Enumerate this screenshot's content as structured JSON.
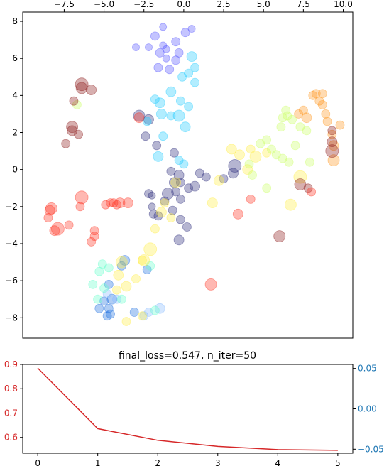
{
  "chart_data": [
    {
      "type": "scatter",
      "title": "",
      "xlabel": "",
      "ylabel": "",
      "xlim": [
        -10.1,
        10.6
      ],
      "ylim": [
        -9.1,
        8.5
      ],
      "x_ticks": [
        -7.5,
        -5.0,
        -2.5,
        0.0,
        2.5,
        5.0,
        7.5,
        10.0
      ],
      "x_tick_labels": [
        "−7.5",
        "−5.0",
        "−2.5",
        "0.0",
        "2.5",
        "5.0",
        "7.5",
        "10.0"
      ],
      "x_ticks_position": "top",
      "y_ticks": [
        -8,
        -6,
        -4,
        -2,
        0,
        2,
        4,
        6,
        8
      ],
      "y_tick_labels": [
        "−8",
        "−6",
        "−4",
        "−2",
        "0",
        "2",
        "4",
        "6",
        "8"
      ],
      "grid": false,
      "legend": "none",
      "alpha": 0.35,
      "clusters": [
        {
          "color": "#2a2a7a",
          "points": [
            [
              -0.2,
              -0.7,
              6
            ],
            [
              -0.5,
              -1.2,
              6
            ],
            [
              0.3,
              -1.0,
              6
            ],
            [
              -2.0,
              -1.4,
              5
            ],
            [
              -1.2,
              -1.7,
              6
            ],
            [
              -0.3,
              -0.3,
              7
            ],
            [
              -1.0,
              -1.3,
              8
            ],
            [
              -2.0,
              -2.0,
              5
            ],
            [
              -0.7,
              -2.2,
              6
            ],
            [
              -0.3,
              -3.8,
              7
            ],
            [
              0.2,
              -3.1,
              6
            ],
            [
              -2.2,
              -1.3,
              6
            ],
            [
              -1.6,
              -2.5,
              6
            ],
            [
              -0.2,
              -1.6,
              6
            ],
            [
              0.7,
              -0.9,
              7
            ],
            [
              1.0,
              -0.2,
              6
            ],
            [
              2.5,
              -0.5,
              6
            ],
            [
              3.1,
              -0.2,
              7
            ],
            [
              3.2,
              0.2,
              9
            ],
            [
              -0.8,
              -0.1,
              6
            ],
            [
              -1.7,
              1.3,
              6
            ],
            [
              -0.6,
              0.9,
              6
            ],
            [
              -2.2,
              2.7,
              7
            ],
            [
              -2.4,
              1.8,
              6
            ],
            [
              -2.8,
              2.9,
              8
            ],
            [
              -0.2,
              -2.7,
              6
            ],
            [
              -0.6,
              -0.7,
              7
            ],
            [
              -1.9,
              -2.4,
              6
            ],
            [
              1.4,
              -0.4,
              6
            ]
          ]
        },
        {
          "color": "#5555ff",
          "points": [
            [
              -1.3,
              7.7,
              5
            ],
            [
              -1.8,
              7.2,
              6
            ],
            [
              0.5,
              7.6,
              5
            ],
            [
              -1.3,
              6.7,
              5
            ],
            [
              -2.2,
              6.6,
              5
            ],
            [
              -1.1,
              6.5,
              5
            ],
            [
              -0.5,
              6.9,
              6
            ],
            [
              0.1,
              7.4,
              6
            ],
            [
              -1.5,
              6.3,
              6
            ],
            [
              -1.6,
              5.5,
              6
            ],
            [
              -0.5,
              5.9,
              6
            ],
            [
              -0.9,
              5.4,
              6
            ],
            [
              -3.0,
              6.6,
              5
            ],
            [
              -1.1,
              6.0,
              5
            ],
            [
              -0.3,
              6.3,
              6
            ]
          ]
        },
        {
          "color": "#22ccff",
          "points": [
            [
              0.5,
              6.1,
              7
            ],
            [
              0.7,
              5.5,
              6
            ],
            [
              0.3,
              5.2,
              6
            ],
            [
              -0.1,
              5.0,
              6
            ],
            [
              0.7,
              4.7,
              6
            ],
            [
              -1.8,
              3.8,
              6
            ],
            [
              -1.5,
              3.6,
              7
            ],
            [
              -0.8,
              4.2,
              7
            ],
            [
              -0.2,
              3.7,
              6
            ],
            [
              0.3,
              3.4,
              6
            ],
            [
              -0.8,
              2.9,
              6
            ],
            [
              -0.3,
              2.9,
              8
            ],
            [
              -1.4,
              3.0,
              7
            ],
            [
              0.1,
              2.3,
              7
            ],
            [
              -1.3,
              1.8,
              6
            ],
            [
              -1.6,
              0.7,
              7
            ],
            [
              -2.3,
              2.6,
              6
            ],
            [
              0.0,
              0.3,
              6
            ],
            [
              -0.3,
              0.5,
              6
            ]
          ]
        },
        {
          "color": "#1e6fe0",
          "points": [
            [
              -4.5,
              -7.0,
              7
            ],
            [
              -4.7,
              -7.5,
              6
            ],
            [
              -4.6,
              -7.8,
              6
            ],
            [
              -4.8,
              -7.9,
              6
            ],
            [
              -3.1,
              -7.7,
              6
            ],
            [
              -4.7,
              -6.2,
              6
            ],
            [
              -5.3,
              -7.5,
              6
            ],
            [
              -5.0,
              -7.1,
              6
            ],
            [
              -3.9,
              -5.2,
              6
            ],
            [
              -2.3,
              -5.4,
              6
            ],
            [
              -3.7,
              -4.9,
              7
            ]
          ]
        },
        {
          "color": "#88bbff",
          "points": [
            [
              -2.5,
              -7.9,
              6
            ],
            [
              -2.2,
              -7.7,
              6
            ],
            [
              -1.5,
              -7.5,
              7
            ],
            [
              -4.2,
              -7.0,
              6
            ],
            [
              -4.8,
              -6.7,
              6
            ]
          ]
        },
        {
          "color": "#66ffcc",
          "points": [
            [
              -5.3,
              -5.5,
              6
            ],
            [
              -5.7,
              -6.2,
              6
            ],
            [
              -5.1,
              -5.1,
              6
            ],
            [
              -5.4,
              -7.0,
              6
            ],
            [
              -5.0,
              -6.4,
              6
            ],
            [
              -3.9,
              -7.0,
              6
            ],
            [
              -2.1,
              -5.2,
              6
            ],
            [
              -1.8,
              -7.6,
              6
            ],
            [
              -4.7,
              -5.3,
              6
            ]
          ]
        },
        {
          "color": "#ffee44",
          "points": [
            [
              -2.5,
              -4.9,
              8
            ],
            [
              -2.1,
              -4.3,
              9
            ],
            [
              -4.1,
              -5.7,
              7
            ],
            [
              -3.6,
              -6.3,
              7
            ],
            [
              -3.0,
              -5.9,
              6
            ],
            [
              -2.6,
              -4.9,
              6
            ],
            [
              -3.6,
              -8.2,
              6
            ],
            [
              -2.6,
              -7.9,
              6
            ],
            [
              -1.8,
              -3.2,
              6
            ],
            [
              -1.4,
              -2.3,
              7
            ],
            [
              -0.8,
              -2.6,
              6
            ],
            [
              -1.2,
              -1.8,
              6
            ],
            [
              -0.5,
              -0.7,
              7
            ],
            [
              1.8,
              -1.8,
              7
            ],
            [
              2.2,
              -0.6,
              7
            ],
            [
              3.0,
              1.1,
              7
            ],
            [
              3.5,
              0.8,
              7
            ],
            [
              4.2,
              1.1,
              6
            ],
            [
              4.5,
              0.7,
              8
            ],
            [
              4.0,
              0.0,
              7
            ],
            [
              5.2,
              0.9,
              6
            ],
            [
              6.7,
              -1.9,
              8
            ],
            [
              7.3,
              -0.4,
              9
            ],
            [
              -4.2,
              -6.5,
              6
            ],
            [
              -3.9,
              -5.0,
              8
            ]
          ]
        },
        {
          "color": "#ccff66",
          "points": [
            [
              -6.7,
              3.5,
              6
            ],
            [
              4.8,
              1.4,
              6
            ],
            [
              5.2,
              1.6,
              6
            ],
            [
              5.5,
              1.1,
              6
            ],
            [
              5.8,
              0.8,
              6
            ],
            [
              6.2,
              0.6,
              6
            ],
            [
              6.1,
              2.3,
              6
            ],
            [
              6.2,
              2.8,
              6
            ],
            [
              6.4,
              3.2,
              6
            ],
            [
              6.5,
              2.9,
              6
            ],
            [
              6.8,
              2.7,
              6
            ],
            [
              7.0,
              1.3,
              6
            ],
            [
              7.3,
              2.3,
              6
            ],
            [
              7.7,
              2.1,
              6
            ],
            [
              7.9,
              0.4,
              6
            ],
            [
              6.6,
              0.4,
              6
            ],
            [
              5.2,
              -1.0,
              6
            ],
            [
              4.3,
              -0.3,
              6
            ],
            [
              4.1,
              0.3,
              6
            ]
          ]
        },
        {
          "color": "#ff9922",
          "points": [
            [
              7.2,
              3.0,
              6
            ],
            [
              7.5,
              3.2,
              6
            ],
            [
              7.7,
              2.8,
              7
            ],
            [
              8.1,
              4.0,
              6
            ],
            [
              8.3,
              4.1,
              6
            ],
            [
              8.5,
              3.7,
              6
            ],
            [
              8.7,
              3.5,
              6
            ],
            [
              8.7,
              4.1,
              6
            ],
            [
              8.9,
              3.0,
              6
            ],
            [
              9.0,
              2.6,
              6
            ],
            [
              9.3,
              1.9,
              6
            ],
            [
              9.4,
              1.3,
              7
            ],
            [
              9.4,
              0.5,
              8
            ],
            [
              9.8,
              2.4,
              6
            ]
          ]
        },
        {
          "color": "#8b1a1a",
          "points": [
            [
              -6.4,
              4.6,
              9
            ],
            [
              -6.4,
              4.4,
              8
            ],
            [
              -7.0,
              2.3,
              8
            ],
            [
              -7.0,
              2.1,
              7
            ],
            [
              -5.8,
              4.3,
              7
            ],
            [
              -6.9,
              3.7,
              6
            ],
            [
              -6.6,
              1.9,
              6
            ],
            [
              -7.4,
              1.4,
              6
            ],
            [
              9.3,
              2.1,
              6
            ],
            [
              9.3,
              1.5,
              7
            ],
            [
              9.3,
              1.0,
              9
            ],
            [
              7.3,
              -0.8,
              8
            ],
            [
              7.8,
              -1.0,
              6
            ],
            [
              6.0,
              -3.6,
              8
            ]
          ]
        },
        {
          "color": "#ff3322",
          "points": [
            [
              -8.3,
              -2.1,
              8
            ],
            [
              -8.4,
              -2.2,
              7
            ],
            [
              -8.5,
              -2.6,
              6
            ],
            [
              -7.9,
              -3.2,
              9
            ],
            [
              -8.1,
              -3.3,
              7
            ],
            [
              -7.2,
              -3.0,
              6
            ],
            [
              -6.4,
              -1.5,
              9
            ],
            [
              -6.5,
              -2.0,
              6
            ],
            [
              -5.6,
              -3.3,
              6
            ],
            [
              -5.6,
              -3.6,
              6
            ],
            [
              -5.8,
              -3.9,
              6
            ],
            [
              -4.9,
              -1.9,
              6
            ],
            [
              -4.6,
              -1.8,
              6
            ],
            [
              -4.4,
              -1.8,
              6
            ],
            [
              -4.2,
              -1.9,
              6
            ],
            [
              -4.0,
              -1.8,
              7
            ],
            [
              -3.5,
              -1.8,
              7
            ],
            [
              -2.8,
              2.8,
              7
            ],
            [
              1.7,
              -6.2,
              8
            ],
            [
              3.4,
              -2.4,
              7
            ],
            [
              4.2,
              -1.6,
              6
            ],
            [
              8.0,
              -1.2,
              6
            ]
          ]
        }
      ]
    },
    {
      "type": "line",
      "title": "final_loss=0.547,  n_iter=50",
      "xlabel": "",
      "ylabel": "",
      "x": [
        0,
        1,
        2,
        3,
        4,
        5
      ],
      "series": [
        {
          "color": "#d62728",
          "values": [
            0.885,
            0.636,
            0.588,
            0.563,
            0.55,
            0.547
          ]
        }
      ],
      "xlim": [
        -0.25,
        5.25
      ],
      "ylim": [
        0.535,
        0.9
      ],
      "x_ticks": [
        0,
        1,
        2,
        3,
        4,
        5
      ],
      "x_tick_labels": [
        "0",
        "1",
        "2",
        "3",
        "4",
        "5"
      ],
      "y_ticks": [
        0.6,
        0.7,
        0.8,
        0.9
      ],
      "y_tick_labels": [
        "0.6",
        "0.7",
        "0.8",
        "0.9"
      ],
      "y_tick_color": "#d62728",
      "right_axis": {
        "ylim": [
          -0.055,
          0.055
        ],
        "y_ticks": [
          0.05,
          0.0,
          -0.05
        ],
        "y_tick_labels": [
          "0.05",
          "0.00",
          "−0.05"
        ],
        "y_tick_color": "#1f77b4"
      },
      "grid": false,
      "legend": "none"
    }
  ]
}
